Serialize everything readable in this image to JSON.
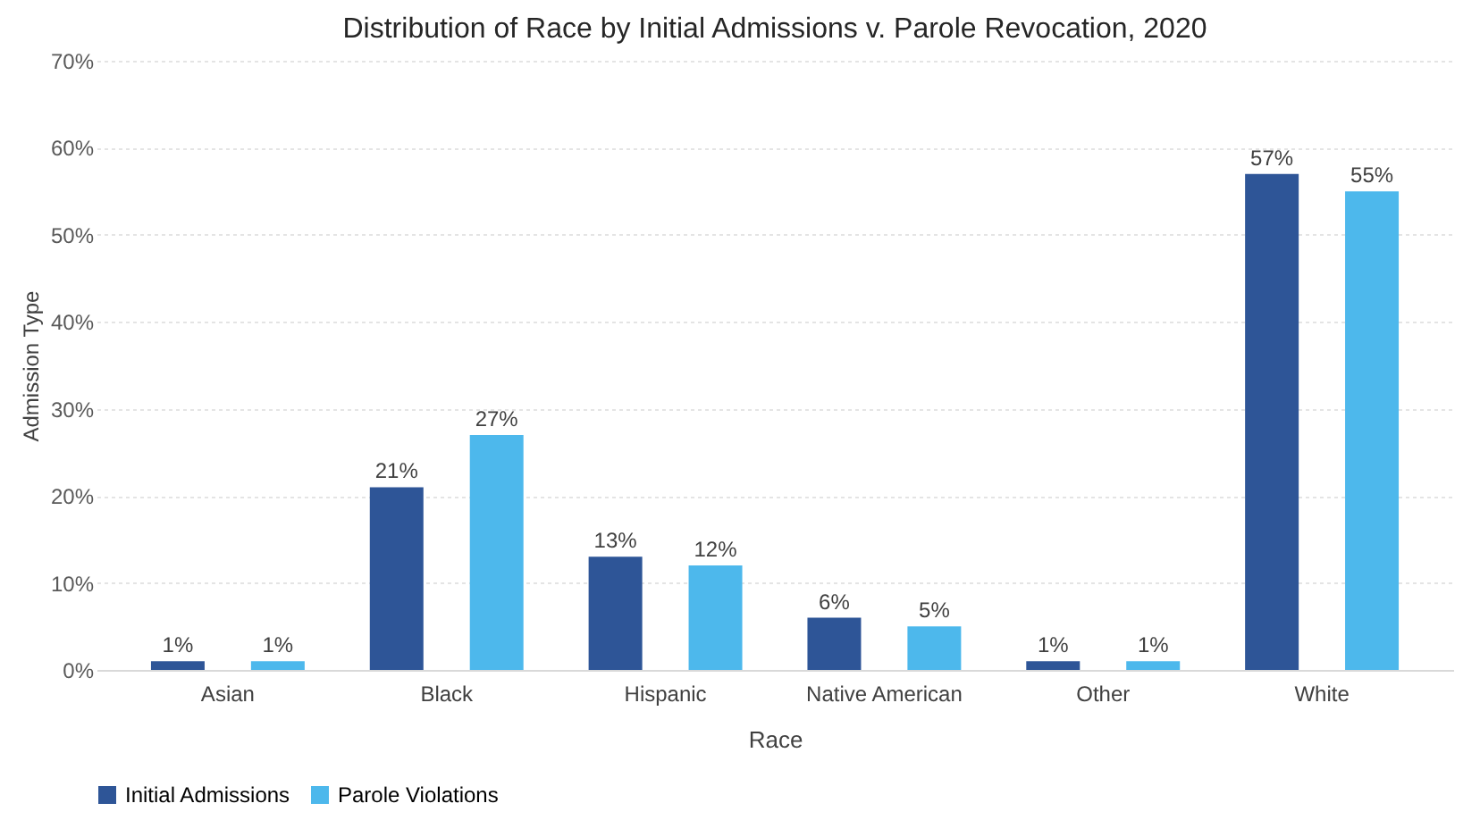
{
  "chart_data": {
    "type": "bar",
    "title": "Distribution of Race by Initial Admissions v. Parole Revocation, 2020",
    "xlabel": "Race",
    "ylabel": "Admission Type",
    "categories": [
      "Asian",
      "Black",
      "Hispanic",
      "Native American",
      "Other",
      "White"
    ],
    "series": [
      {
        "name": "Initial Admissions",
        "color": "#2e5597",
        "values": [
          1,
          21,
          13,
          6,
          1,
          57
        ],
        "value_labels": [
          "1%",
          "21%",
          "13%",
          "6%",
          "1%",
          "57%"
        ]
      },
      {
        "name": "Parole Violations",
        "color": "#4db8ec",
        "values": [
          1,
          27,
          12,
          5,
          1,
          55
        ],
        "value_labels": [
          "1%",
          "27%",
          "12%",
          "5%",
          "1%",
          "55%"
        ]
      }
    ],
    "ylim": [
      0,
      70
    ],
    "yticks": [
      {
        "value": 0,
        "label": "0%"
      },
      {
        "value": 10,
        "label": "10%"
      },
      {
        "value": 20,
        "label": "20%"
      },
      {
        "value": 30,
        "label": "30%"
      },
      {
        "value": 40,
        "label": "40%"
      },
      {
        "value": 50,
        "label": "50%"
      },
      {
        "value": 60,
        "label": "60%"
      },
      {
        "value": 70,
        "label": "70%"
      }
    ],
    "grid": "y",
    "legend": "bottom"
  }
}
